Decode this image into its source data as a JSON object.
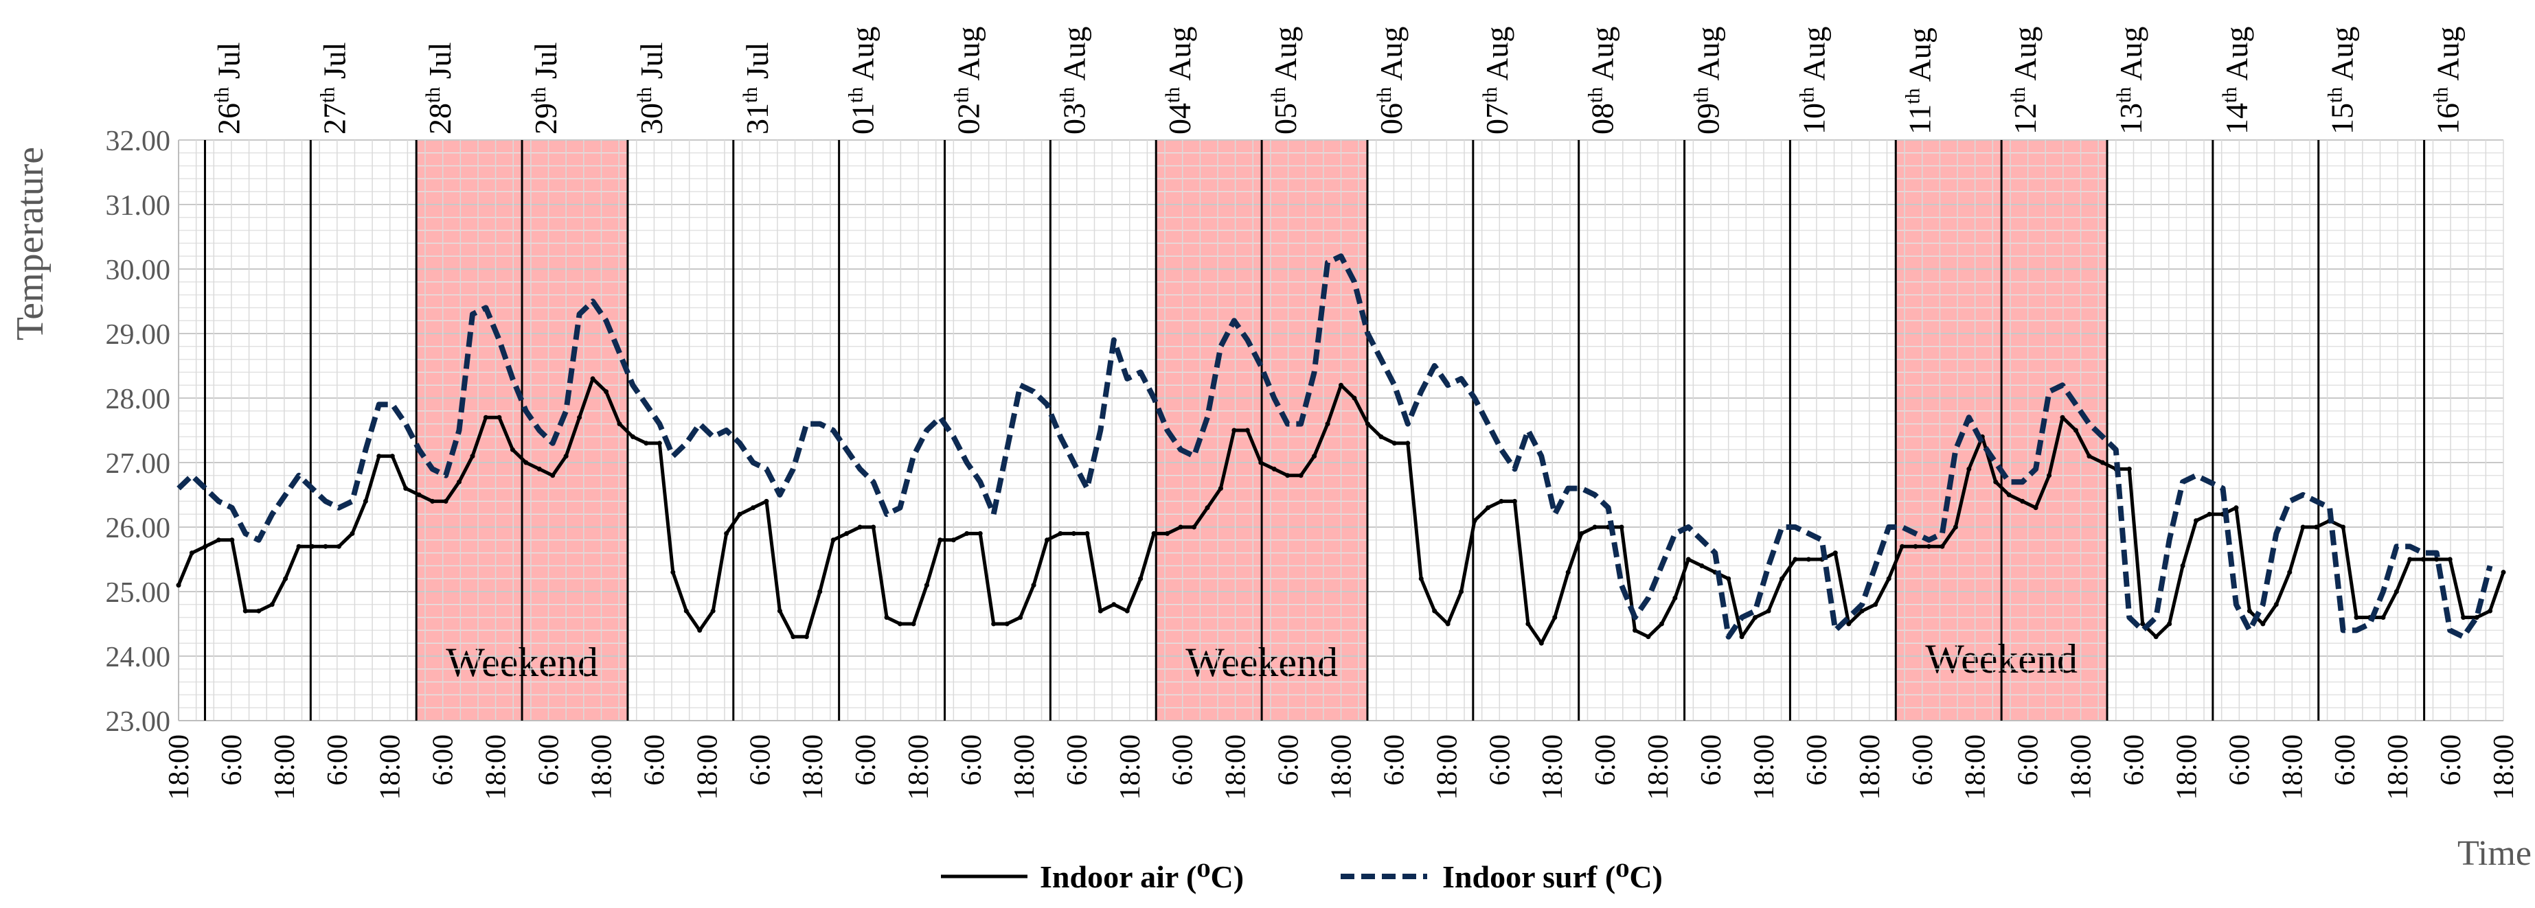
{
  "chart_data": {
    "type": "line",
    "ylabel": "Temperature",
    "xlabel": "Time",
    "ylim": [
      23,
      32
    ],
    "y_ticks": [
      "23.00",
      "24.00",
      "25.00",
      "26.00",
      "27.00",
      "28.00",
      "29.00",
      "30.00",
      "31.00",
      "32.00"
    ],
    "x_tick_labels": [
      "18:00",
      "6:00",
      "18:00",
      "6:00",
      "18:00",
      "6:00",
      "18:00",
      "6:00",
      "18:00",
      "6:00",
      "18:00",
      "6:00",
      "18:00",
      "6:00",
      "18:00",
      "6:00",
      "18:00",
      "6:00",
      "18:00",
      "6:00",
      "18:00",
      "6:00",
      "18:00",
      "6:00",
      "18:00",
      "6:00",
      "18:00",
      "6:00",
      "18:00",
      "6:00",
      "18:00",
      "6:00",
      "18:00",
      "6:00",
      "18:00",
      "6:00",
      "18:00",
      "6:00",
      "18:00",
      "6:00",
      "18:00",
      "6:00",
      "18:00",
      "6:00",
      "18:00"
    ],
    "day_labels": [
      {
        "base": "26",
        "sup": "th",
        "month": "Jul"
      },
      {
        "base": "27",
        "sup": "th",
        "month": "Jul"
      },
      {
        "base": "28",
        "sup": "th",
        "month": "Jul"
      },
      {
        "base": "29",
        "sup": "th",
        "month": "Jul"
      },
      {
        "base": "30",
        "sup": "th",
        "month": "Jul"
      },
      {
        "base": "31",
        "sup": "th",
        "month": "Jul"
      },
      {
        "base": "01",
        "sup": "th",
        "month": "Aug"
      },
      {
        "base": "02",
        "sup": "th",
        "month": "Aug"
      },
      {
        "base": "03",
        "sup": "th",
        "month": "Aug"
      },
      {
        "base": "04",
        "sup": "th",
        "month": "Aug"
      },
      {
        "base": "05",
        "sup": "th",
        "month": "Aug"
      },
      {
        "base": "06",
        "sup": "th",
        "month": "Aug"
      },
      {
        "base": "07",
        "sup": "th",
        "month": "Aug"
      },
      {
        "base": "08",
        "sup": "th",
        "month": "Aug"
      },
      {
        "base": "09",
        "sup": "th",
        "month": "Aug"
      },
      {
        "base": "10",
        "sup": "th",
        "month": "Aug"
      },
      {
        "base": "11",
        "sup": "th",
        "month": "Aug"
      },
      {
        "base": "12",
        "sup": "th",
        "month": "Aug"
      },
      {
        "base": "13",
        "sup": "th",
        "month": "Aug"
      },
      {
        "base": "14",
        "sup": "th",
        "month": "Aug"
      },
      {
        "base": "15",
        "sup": "th",
        "month": "Aug"
      },
      {
        "base": "16",
        "sup": "th",
        "month": "Aug"
      }
    ],
    "weekend_label": "Weekend",
    "weekends": [
      [
        2,
        4
      ],
      [
        9,
        11
      ],
      [
        16,
        18
      ]
    ],
    "series": [
      {
        "name": "Indoor air (⁰C)",
        "color": "#000000",
        "style": "solid",
        "values": [
          25.1,
          25.6,
          25.7,
          25.8,
          25.8,
          24.7,
          24.7,
          24.8,
          25.2,
          25.7,
          25.7,
          25.7,
          25.7,
          25.9,
          26.4,
          27.1,
          27.1,
          26.6,
          26.5,
          26.4,
          26.4,
          26.7,
          27.1,
          27.7,
          27.7,
          27.2,
          27.0,
          26.9,
          26.8,
          27.1,
          27.7,
          28.3,
          28.1,
          27.6,
          27.4,
          27.3,
          27.3,
          25.3,
          24.7,
          24.4,
          24.7,
          25.9,
          26.2,
          26.3,
          26.4,
          24.7,
          24.3,
          24.3,
          25.0,
          25.8,
          25.9,
          26.0,
          26.0,
          24.6,
          24.5,
          24.5,
          25.1,
          25.8,
          25.8,
          25.9,
          25.9,
          24.5,
          24.5,
          24.6,
          25.1,
          25.8,
          25.9,
          25.9,
          25.9,
          24.7,
          24.8,
          24.7,
          25.2,
          25.9,
          25.9,
          26.0,
          26.0,
          26.3,
          26.6,
          27.5,
          27.5,
          27.0,
          26.9,
          26.8,
          26.8,
          27.1,
          27.6,
          28.2,
          28.0,
          27.6,
          27.4,
          27.3,
          27.3,
          25.2,
          24.7,
          24.5,
          25.0,
          26.1,
          26.3,
          26.4,
          26.4,
          24.5,
          24.2,
          24.6,
          25.3,
          25.9,
          26.0,
          26.0,
          26.0,
          24.4,
          24.3,
          24.5,
          24.9,
          25.5,
          25.4,
          25.3,
          25.2,
          24.3,
          24.6,
          24.7,
          25.2,
          25.5,
          25.5,
          25.5,
          25.6,
          24.5,
          24.7,
          24.8,
          25.2,
          25.7,
          25.7,
          25.7,
          25.7,
          26.0,
          26.9,
          27.4,
          26.7,
          26.5,
          26.4,
          26.3,
          26.8,
          27.7,
          27.5,
          27.1,
          27.0,
          26.9,
          26.9,
          24.5,
          24.3,
          24.5,
          25.4,
          26.1,
          26.2,
          26.2,
          26.3,
          24.7,
          24.5,
          24.8,
          25.3,
          26.0,
          26.0,
          26.1,
          26.0,
          24.6,
          24.6,
          24.6,
          25.0,
          25.5,
          25.5,
          25.5,
          25.5,
          24.6,
          24.6,
          24.7,
          25.3
        ]
      },
      {
        "name": "Indoor surf (⁰C)",
        "color": "#0d2a52",
        "style": "dashed",
        "values": [
          26.6,
          26.8,
          26.6,
          26.4,
          26.3,
          25.9,
          25.8,
          26.2,
          26.5,
          26.8,
          26.6,
          26.4,
          26.3,
          26.4,
          27.2,
          27.9,
          27.9,
          27.6,
          27.2,
          26.9,
          26.8,
          27.5,
          29.3,
          29.4,
          28.9,
          28.3,
          27.8,
          27.5,
          27.3,
          27.8,
          29.3,
          29.5,
          29.2,
          28.7,
          28.2,
          27.9,
          27.6,
          27.1,
          27.3,
          27.6,
          27.4,
          27.5,
          27.3,
          27.0,
          26.9,
          26.5,
          26.9,
          27.6,
          27.6,
          27.5,
          27.2,
          26.9,
          26.7,
          26.2,
          26.3,
          27.1,
          27.5,
          27.7,
          27.4,
          27.0,
          26.7,
          26.2,
          27.2,
          28.2,
          28.1,
          27.9,
          27.4,
          27.0,
          26.6,
          27.5,
          28.9,
          28.3,
          28.4,
          28.0,
          27.5,
          27.2,
          27.1,
          27.7,
          28.8,
          29.2,
          28.9,
          28.5,
          28.0,
          27.6,
          27.6,
          28.4,
          30.1,
          30.2,
          29.8,
          29.0,
          28.6,
          28.2,
          27.6,
          28.1,
          28.5,
          28.2,
          28.3,
          28.0,
          27.6,
          27.2,
          26.9,
          27.5,
          27.1,
          26.2,
          26.6,
          26.6,
          26.5,
          26.3,
          25.1,
          24.6,
          24.9,
          25.4,
          25.9,
          26.0,
          25.8,
          25.6,
          24.3,
          24.6,
          24.7,
          25.4,
          26.0,
          26.0,
          25.9,
          25.8,
          24.4,
          24.6,
          24.8,
          25.4,
          26.0,
          26.0,
          25.9,
          25.8,
          25.9,
          27.2,
          27.7,
          27.3,
          27.0,
          26.7,
          26.7,
          26.9,
          28.1,
          28.2,
          27.9,
          27.6,
          27.4,
          27.2,
          24.6,
          24.4,
          24.6,
          25.8,
          26.7,
          26.8,
          26.7,
          26.6,
          24.8,
          24.4,
          24.8,
          25.9,
          26.4,
          26.5,
          26.4,
          26.3,
          24.4,
          24.4,
          24.5,
          25.0,
          25.7,
          25.7,
          25.6,
          25.6,
          24.4,
          24.3,
          24.6,
          25.4
        ]
      }
    ],
    "legend": [
      {
        "name": "Indoor air (⁰C)",
        "style": "solid"
      },
      {
        "name": "Indoor surf (⁰C)",
        "style": "dashed"
      }
    ],
    "legend_position": "bottom-center"
  },
  "colors": {
    "weekend_fill": "#ffb3b3",
    "axis_text": "#595959",
    "grid": "#d0d0d0",
    "day_line": "#000000"
  }
}
